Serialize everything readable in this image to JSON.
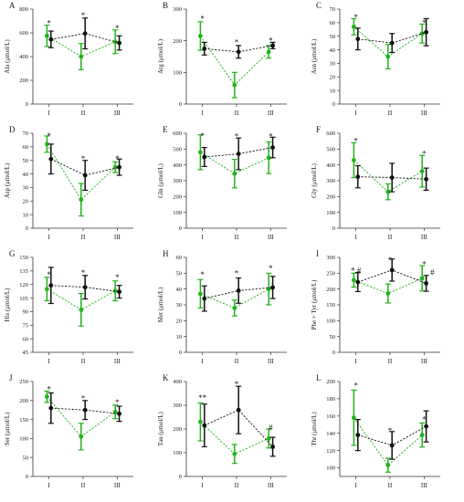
{
  "colors": {
    "black": "#111111",
    "green": "#22b31a",
    "axis": "#333333"
  },
  "chart_data": [
    {
      "type": "line",
      "panel": "A",
      "ylabel": "Ala (μmol/L)",
      "categories": [
        "I",
        "II",
        "III"
      ],
      "ylim": [
        0,
        800
      ],
      "yticks": [
        0,
        200,
        400,
        600,
        800
      ],
      "series": [
        {
          "color": "black",
          "values": [
            545,
            595,
            515
          ],
          "err": [
            70,
            130,
            60
          ]
        },
        {
          "color": "green",
          "values": [
            575,
            400,
            525
          ],
          "err": [
            90,
            110,
            100
          ]
        }
      ],
      "annotations": [
        {
          "cat": 0,
          "text": "*",
          "at": 680
        },
        {
          "cat": 1,
          "text": "*",
          "at": 745
        },
        {
          "cat": 2,
          "text": "*",
          "at": 640
        }
      ]
    },
    {
      "type": "line",
      "panel": "B",
      "ylabel": "Arg (μmol/L)",
      "categories": [
        "I",
        "II",
        "III"
      ],
      "ylim": [
        0,
        300
      ],
      "yticks": [
        0,
        100,
        200,
        300
      ],
      "series": [
        {
          "color": "black",
          "values": [
            175,
            165,
            185
          ],
          "err": [
            20,
            20,
            10
          ]
        },
        {
          "color": "green",
          "values": [
            215,
            60,
            165
          ],
          "err": [
            45,
            40,
            20
          ]
        }
      ],
      "annotations": [
        {
          "cat": 0,
          "text": "*",
          "at": 270
        },
        {
          "cat": 1,
          "text": "*",
          "at": 195
        },
        {
          "cat": 2,
          "text": "*",
          "at": 200
        }
      ]
    },
    {
      "type": "line",
      "panel": "C",
      "ylabel": "Asn (μmol/L)",
      "categories": [
        "I",
        "II",
        "III"
      ],
      "ylim": [
        0,
        70
      ],
      "yticks": [
        0,
        10,
        20,
        30,
        40,
        50,
        60,
        70
      ],
      "series": [
        {
          "color": "black",
          "values": [
            48,
            45,
            53
          ],
          "err": [
            8,
            7,
            10
          ]
        },
        {
          "color": "green",
          "values": [
            57,
            35,
            52
          ],
          "err": [
            6,
            9,
            7
          ]
        }
      ],
      "annotations": [
        {
          "cat": 0,
          "text": "*",
          "at": 64
        },
        {
          "cat": 2,
          "text": "*",
          "at": 60
        }
      ]
    },
    {
      "type": "line",
      "panel": "D",
      "ylabel": "Asp (μmol/L)",
      "categories": [
        "I",
        "II",
        "III"
      ],
      "ylim": [
        0,
        70
      ],
      "yticks": [
        0,
        10,
        20,
        30,
        40,
        50,
        60,
        70
      ],
      "series": [
        {
          "color": "black",
          "values": [
            51,
            39,
            45
          ],
          "err": [
            11,
            11,
            6
          ]
        },
        {
          "color": "green",
          "values": [
            62,
            21,
            45
          ],
          "err": [
            6,
            12,
            4
          ]
        }
      ],
      "annotations": [
        {
          "cat": 0,
          "text": "*",
          "at": 69
        },
        {
          "cat": 1,
          "text": "*",
          "at": 51
        },
        {
          "cat": 2,
          "text": "*",
          "at": 51
        }
      ]
    },
    {
      "type": "line",
      "panel": "E",
      "ylabel": "Gln (μmol/L)",
      "categories": [
        "I",
        "II",
        "III"
      ],
      "ylim": [
        0,
        600
      ],
      "yticks": [
        0,
        100,
        200,
        300,
        400,
        500,
        600
      ],
      "series": [
        {
          "color": "black",
          "values": [
            450,
            470,
            510
          ],
          "err": [
            60,
            100,
            65
          ]
        },
        {
          "color": "green",
          "values": [
            480,
            345,
            445
          ],
          "err": [
            110,
            90,
            100
          ]
        }
      ],
      "annotations": [
        {
          "cat": 0,
          "text": "*",
          "at": 600
        },
        {
          "cat": 1,
          "text": "*",
          "at": 580
        },
        {
          "cat": 2,
          "text": "*",
          "at": 580
        }
      ]
    },
    {
      "type": "line",
      "panel": "F",
      "ylabel": "Gly (μmol/L)",
      "categories": [
        "I",
        "II",
        "III"
      ],
      "ylim": [
        0,
        600
      ],
      "yticks": [
        0,
        100,
        200,
        300,
        400,
        500,
        600
      ],
      "series": [
        {
          "color": "black",
          "values": [
            325,
            320,
            310
          ],
          "err": [
            70,
            90,
            70
          ]
        },
        {
          "color": "green",
          "values": [
            430,
            230,
            360
          ],
          "err": [
            110,
            50,
            100
          ]
        }
      ],
      "annotations": [
        {
          "cat": 0,
          "text": "*",
          "at": 550
        },
        {
          "cat": 2,
          "text": "*",
          "at": 470
        }
      ]
    },
    {
      "type": "line",
      "panel": "G",
      "ylabel": "His (μmol/L)",
      "categories": [
        "I",
        "II",
        "III"
      ],
      "ylim": [
        45,
        150
      ],
      "yticks": [
        45,
        60,
        75,
        90,
        105,
        120,
        135,
        150
      ],
      "series": [
        {
          "color": "black",
          "values": [
            119,
            117,
            112
          ],
          "err": [
            20,
            13,
            7
          ]
        },
        {
          "color": "green",
          "values": [
            115,
            92,
            113
          ],
          "err": [
            13,
            18,
            11
          ]
        }
      ],
      "annotations": [
        {
          "cat": 0,
          "text": "*",
          "at": 131
        },
        {
          "cat": 1,
          "text": "*",
          "at": 133
        },
        {
          "cat": 2,
          "text": "*",
          "at": 128
        }
      ]
    },
    {
      "type": "line",
      "panel": "H",
      "ylabel": "Met (μmol/L)",
      "categories": [
        "I",
        "II",
        "III"
      ],
      "ylim": [
        0,
        60
      ],
      "yticks": [
        0,
        10,
        20,
        30,
        40,
        50,
        60
      ],
      "series": [
        {
          "color": "black",
          "values": [
            34,
            39,
            41
          ],
          "err": [
            8,
            8,
            7
          ]
        },
        {
          "color": "green",
          "values": [
            37,
            28,
            40
          ],
          "err": [
            9,
            5,
            10
          ]
        }
      ],
      "annotations": [
        {
          "cat": 0,
          "text": "*",
          "at": 49
        },
        {
          "cat": 1,
          "text": "*",
          "at": 50
        },
        {
          "cat": 2,
          "text": "*",
          "at": 53
        }
      ]
    },
    {
      "type": "line",
      "panel": "I",
      "ylabel": "Phe + Tyr (μmol/L)",
      "categories": [
        "I",
        "II",
        "III"
      ],
      "ylim": [
        0,
        300
      ],
      "yticks": [
        0,
        50,
        100,
        150,
        200,
        250,
        300
      ],
      "series": [
        {
          "color": "black",
          "values": [
            222,
            260,
            218
          ],
          "err": [
            30,
            35,
            25
          ]
        },
        {
          "color": "green",
          "values": [
            228,
            186,
            234
          ],
          "err": [
            22,
            30,
            40
          ]
        }
      ],
      "annotations": [
        {
          "cat": 0,
          "text": "* #",
          "at": 258
        },
        {
          "cat": 1,
          "text": "*",
          "at": 297
        },
        {
          "cat": 2,
          "text": "*",
          "at": 278
        },
        {
          "cat": 2,
          "text": "#",
          "at": 252,
          "dx": 9
        }
      ]
    },
    {
      "type": "line",
      "panel": "J",
      "ylabel": "Ser (μmol/L)",
      "categories": [
        "I",
        "II",
        "III"
      ],
      "ylim": [
        0,
        250
      ],
      "yticks": [
        0,
        50,
        100,
        150,
        200,
        250
      ],
      "series": [
        {
          "color": "black",
          "values": [
            180,
            175,
            165
          ],
          "err": [
            40,
            25,
            20
          ]
        },
        {
          "color": "green",
          "values": [
            210,
            105,
            170
          ],
          "err": [
            15,
            35,
            18
          ]
        }
      ],
      "annotations": [
        {
          "cat": 0,
          "text": "*",
          "at": 230
        },
        {
          "cat": 1,
          "text": "*",
          "at": 205
        },
        {
          "cat": 2,
          "text": "*",
          "at": 195
        }
      ]
    },
    {
      "type": "line",
      "panel": "K",
      "ylabel": "Tau (μmol/L)",
      "categories": [
        "I",
        "II",
        "III"
      ],
      "ylim": [
        0,
        400
      ],
      "yticks": [
        0,
        100,
        200,
        300,
        400
      ],
      "series": [
        {
          "color": "black",
          "values": [
            215,
            280,
            125
          ],
          "err": [
            90,
            100,
            40
          ]
        },
        {
          "color": "green",
          "values": [
            230,
            95,
            160
          ],
          "err": [
            80,
            40,
            40
          ]
        }
      ],
      "annotations": [
        {
          "cat": 0,
          "text": "**",
          "at": 330
        },
        {
          "cat": 1,
          "text": "*",
          "at": 390
        },
        {
          "cat": 2,
          "text": "#",
          "at": 205
        }
      ]
    },
    {
      "type": "line",
      "panel": "L",
      "ylabel": "Thr (μmol/L)",
      "categories": [
        "I",
        "II",
        "III"
      ],
      "ylim": [
        90,
        200
      ],
      "yticks": [
        100,
        120,
        140,
        160,
        180,
        200
      ],
      "series": [
        {
          "color": "black",
          "values": [
            138,
            126,
            148
          ],
          "err": [
            18,
            16,
            18
          ]
        },
        {
          "color": "green",
          "values": [
            158,
            103,
            138
          ],
          "err": [
            32,
            8,
            14
          ]
        }
      ],
      "annotations": [
        {
          "cat": 0,
          "text": "*",
          "at": 195
        },
        {
          "cat": 1,
          "text": "*",
          "at": 143
        },
        {
          "cat": 2,
          "text": "*",
          "at": 156
        }
      ]
    }
  ]
}
